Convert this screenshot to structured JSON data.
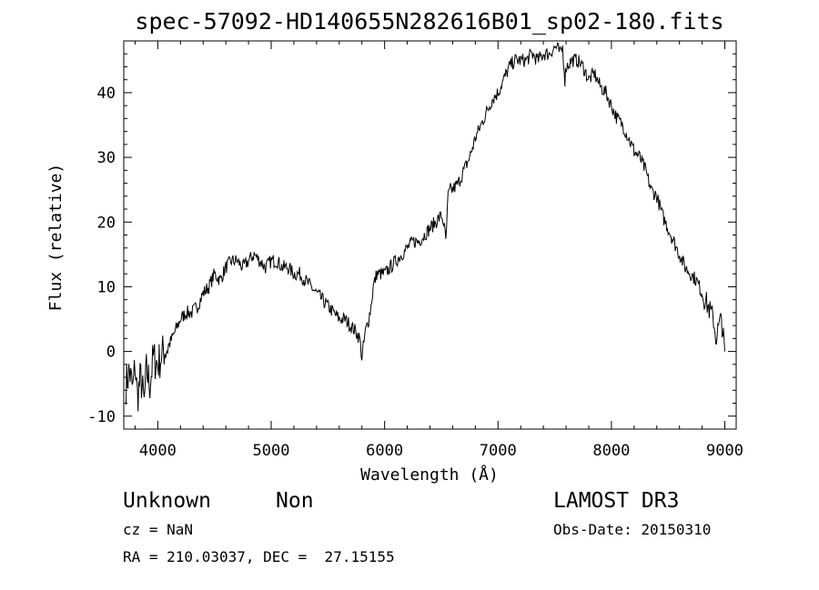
{
  "chart_data": {
    "type": "line",
    "title": "spec-57092-HD140655N282616B01_sp02-180.fits",
    "xlabel": "Wavelength (Å)",
    "ylabel": "Flux (relative)",
    "xlim": [
      3700,
      9100
    ],
    "ylim": [
      -12,
      48
    ],
    "xticks": [
      4000,
      5000,
      6000,
      7000,
      8000,
      9000
    ],
    "yticks": [
      -10,
      0,
      10,
      20,
      30,
      40
    ],
    "grid": false,
    "series": [
      {
        "color": "#000000",
        "x": [
          3720,
          3750,
          3780,
          3800,
          3820,
          3850,
          3880,
          3900,
          3930,
          3960,
          4000,
          4050,
          4100,
          4150,
          4200,
          4250,
          4300,
          4350,
          4400,
          4450,
          4500,
          4550,
          4600,
          4650,
          4700,
          4750,
          4800,
          4850,
          4900,
          4950,
          5000,
          5050,
          5100,
          5150,
          5200,
          5250,
          5300,
          5350,
          5400,
          5450,
          5500,
          5550,
          5600,
          5650,
          5700,
          5750,
          5780,
          5800,
          5830,
          5860,
          5880,
          5900,
          5930,
          5960,
          6000,
          6050,
          6100,
          6150,
          6200,
          6250,
          6300,
          6350,
          6400,
          6450,
          6500,
          6520,
          6540,
          6560,
          6580,
          6600,
          6650,
          6700,
          6750,
          6800,
          6850,
          6900,
          6950,
          7000,
          7050,
          7100,
          7150,
          7200,
          7250,
          7300,
          7350,
          7400,
          7450,
          7500,
          7520,
          7550,
          7570,
          7590,
          7600,
          7650,
          7700,
          7750,
          7800,
          7850,
          7900,
          7950,
          8000,
          8050,
          8100,
          8150,
          8200,
          8250,
          8300,
          8350,
          8400,
          8450,
          8500,
          8550,
          8600,
          8650,
          8700,
          8750,
          8800,
          8850,
          8900,
          8920,
          8950,
          8970,
          9000
        ],
        "y": [
          -5,
          -3,
          -6,
          -2,
          -7,
          -4,
          -8,
          -3,
          -5,
          -1,
          -2,
          0,
          1,
          3,
          5,
          6,
          6,
          7,
          9,
          10,
          12,
          11,
          13,
          14,
          14,
          13,
          14,
          15,
          14,
          13,
          14,
          14,
          13,
          13,
          12,
          12,
          11,
          10,
          9,
          8,
          7,
          6,
          5,
          5,
          4,
          3,
          2,
          -1,
          3,
          5,
          7,
          10,
          12,
          12,
          12,
          13,
          14,
          15,
          16,
          17,
          17,
          18,
          19,
          20,
          21,
          20,
          17,
          24,
          25,
          25,
          26,
          28,
          30,
          33,
          35,
          37,
          39,
          40,
          42,
          44,
          45,
          45,
          45,
          46,
          45,
          46,
          46,
          47,
          47,
          46,
          47,
          42,
          44,
          45,
          45,
          44,
          42,
          43,
          41,
          40,
          38,
          36,
          35,
          33,
          31,
          30,
          28,
          25,
          24,
          21,
          19,
          17,
          15,
          13,
          12,
          11,
          9,
          7,
          5,
          2,
          4,
          5,
          0
        ]
      }
    ]
  },
  "info": {
    "class_label": "Unknown",
    "subclass_label": "Non",
    "survey": "LAMOST DR3",
    "cz": "cz = NaN",
    "obs_date": "Obs-Date: 20150310",
    "coords": "RA = 210.03037, DEC =  27.15155"
  }
}
